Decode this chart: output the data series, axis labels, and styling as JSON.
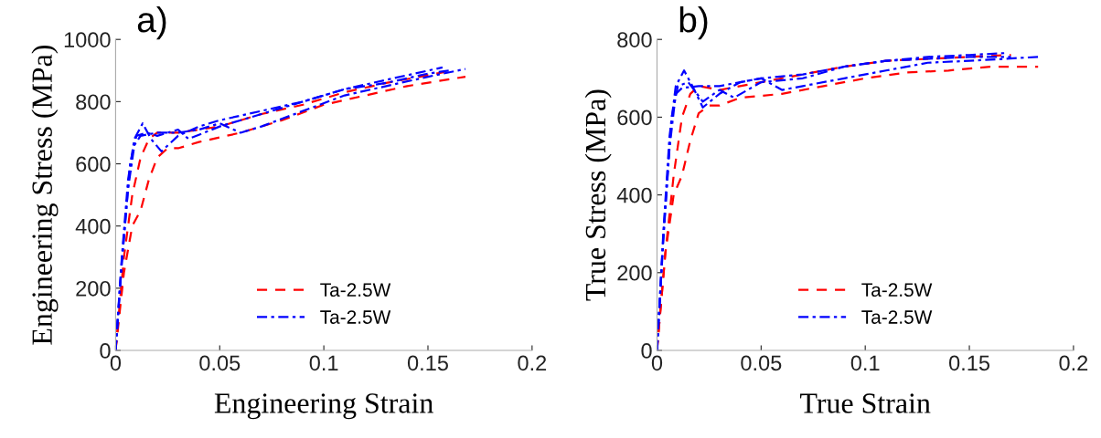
{
  "chart_data": [
    {
      "type": "line",
      "title": "a)",
      "xlabel": "Engineering Strain",
      "ylabel": "Engineering Stress (MPa)",
      "xlim": [
        0,
        0.2
      ],
      "ylim": [
        0,
        1000
      ],
      "xticks": [
        0,
        0.05,
        0.1,
        0.15,
        0.2
      ],
      "yticks": [
        0,
        200,
        400,
        600,
        800,
        1000
      ],
      "grid": false,
      "legend": "bottom",
      "marker": "none",
      "series": [
        {
          "name": "Ta-2.5W",
          "color": "#ff0000",
          "line_style": "dashed",
          "x": [
            0,
            0.004,
            0.008,
            0.012,
            0.016,
            0.02,
            0.03,
            0.05,
            0.07,
            0.09,
            0.11,
            0.13,
            0.158
          ],
          "values": [
            0,
            300,
            500,
            620,
            680,
            700,
            700,
            720,
            760,
            790,
            830,
            860,
            895
          ]
        },
        {
          "color": "#ff0000",
          "line_style": "dashed",
          "x": [
            0,
            0.004,
            0.008,
            0.012,
            0.016,
            0.02,
            0.025,
            0.03,
            0.04,
            0.06,
            0.08,
            0.1,
            0.12,
            0.14,
            0.168
          ],
          "values": [
            0,
            250,
            400,
            450,
            550,
            620,
            650,
            650,
            670,
            700,
            740,
            790,
            820,
            850,
            880
          ]
        },
        {
          "name": "Ta-2.5W",
          "color": "#0000ff",
          "line_style": "dashdot",
          "x": [
            0,
            0.003,
            0.006,
            0.009,
            0.013,
            0.017,
            0.022,
            0.03,
            0.04,
            0.05,
            0.07,
            0.09,
            0.11,
            0.13,
            0.157
          ],
          "values": [
            0,
            300,
            550,
            680,
            730,
            680,
            640,
            690,
            720,
            740,
            770,
            800,
            840,
            870,
            910
          ]
        },
        {
          "color": "#0000ff",
          "line_style": "dashdot",
          "x": [
            0,
            0.003,
            0.006,
            0.009,
            0.012,
            0.02,
            0.03,
            0.04,
            0.05,
            0.06,
            0.07,
            0.09,
            0.11,
            0.13,
            0.15,
            0.168
          ],
          "values": [
            0,
            280,
            520,
            660,
            690,
            700,
            700,
            710,
            730,
            700,
            720,
            770,
            820,
            850,
            880,
            905
          ]
        },
        {
          "color": "#0000ff",
          "line_style": "dashdot",
          "x": [
            0,
            0.003,
            0.007,
            0.01,
            0.015,
            0.02,
            0.03,
            0.035,
            0.05,
            0.07,
            0.09,
            0.11,
            0.13,
            0.15,
            0.16
          ],
          "values": [
            0,
            290,
            600,
            690,
            700,
            690,
            710,
            680,
            720,
            760,
            800,
            840,
            860,
            890,
            900
          ]
        }
      ]
    },
    {
      "type": "line",
      "title": "b)",
      "xlabel": "True Strain",
      "ylabel": "True Stress (MPa)",
      "xlim": [
        0,
        0.2
      ],
      "ylim": [
        0,
        800
      ],
      "xticks": [
        0,
        0.05,
        0.1,
        0.15,
        0.2
      ],
      "yticks": [
        0,
        200,
        400,
        600,
        800
      ],
      "grid": false,
      "legend": "bottom",
      "marker": "none",
      "series": [
        {
          "name": "Ta-2.5W",
          "color": "#ff0000",
          "line_style": "dashed",
          "x": [
            0,
            0.004,
            0.008,
            0.012,
            0.016,
            0.02,
            0.03,
            0.05,
            0.07,
            0.09,
            0.11,
            0.13,
            0.15,
            0.17
          ],
          "values": [
            0,
            250,
            450,
            600,
            660,
            680,
            670,
            690,
            710,
            730,
            745,
            750,
            755,
            760
          ]
        },
        {
          "color": "#ff0000",
          "line_style": "dashed",
          "x": [
            0,
            0.004,
            0.008,
            0.012,
            0.016,
            0.02,
            0.025,
            0.03,
            0.04,
            0.06,
            0.08,
            0.1,
            0.12,
            0.14,
            0.16,
            0.183
          ],
          "values": [
            0,
            250,
            400,
            450,
            540,
            610,
            630,
            630,
            650,
            660,
            680,
            700,
            715,
            720,
            730,
            730
          ]
        },
        {
          "name": "Ta-2.5W",
          "color": "#0000ff",
          "line_style": "dashdot",
          "x": [
            0,
            0.003,
            0.006,
            0.009,
            0.013,
            0.017,
            0.022,
            0.03,
            0.04,
            0.05,
            0.07,
            0.09,
            0.11,
            0.13,
            0.15,
            0.168
          ],
          "values": [
            0,
            300,
            550,
            680,
            720,
            680,
            625,
            660,
            690,
            700,
            710,
            730,
            745,
            755,
            760,
            765
          ]
        },
        {
          "color": "#0000ff",
          "line_style": "dashdot",
          "x": [
            0,
            0.003,
            0.006,
            0.009,
            0.012,
            0.02,
            0.03,
            0.04,
            0.05,
            0.06,
            0.07,
            0.09,
            0.11,
            0.13,
            0.15,
            0.183
          ],
          "values": [
            0,
            280,
            520,
            660,
            675,
            680,
            680,
            690,
            700,
            670,
            680,
            700,
            720,
            740,
            745,
            755
          ]
        },
        {
          "color": "#0000ff",
          "line_style": "dashdot",
          "x": [
            0,
            0.003,
            0.007,
            0.01,
            0.015,
            0.022,
            0.03,
            0.037,
            0.05,
            0.07,
            0.09,
            0.11,
            0.13,
            0.15,
            0.17
          ],
          "values": [
            0,
            290,
            600,
            680,
            690,
            640,
            670,
            650,
            690,
            700,
            730,
            745,
            750,
            755,
            755
          ]
        }
      ]
    }
  ]
}
